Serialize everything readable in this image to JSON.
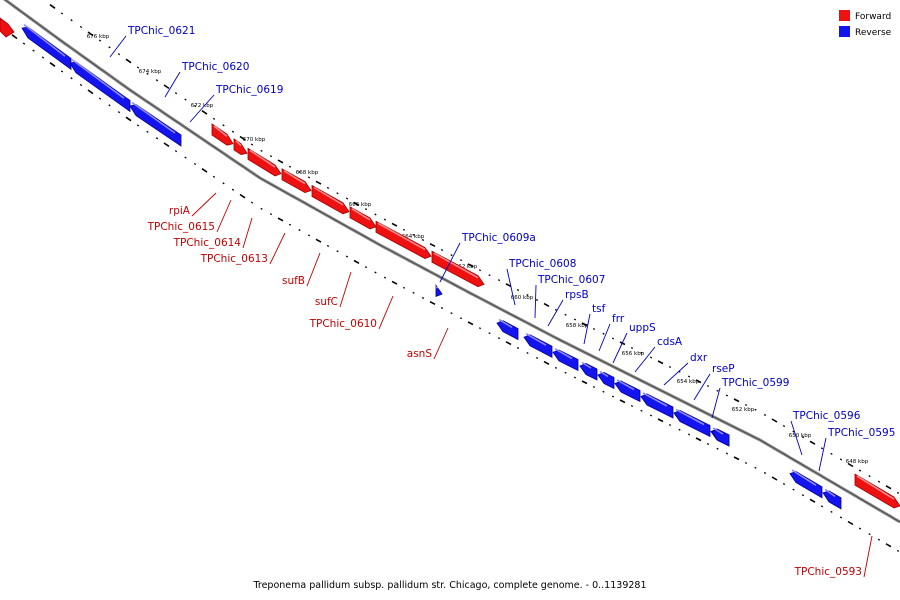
{
  "legend": [
    {
      "label": "Forward",
      "color": "#ee1111"
    },
    {
      "label": "Reverse",
      "color": "#1414ee"
    }
  ],
  "caption": "Treponema pallidum subsp. pallidum str. Chicago, complete genome. - 0..1139281",
  "colors": {
    "forward": "#ee1111",
    "forward_dark": "#a00000",
    "forward_light": "#ff8a8a",
    "reverse": "#1414ee",
    "reverse_dark": "#00009a",
    "reverse_light": "#8a8aff",
    "label_forward": "#c00000",
    "label_reverse": "#0000c0",
    "backbone": "#888888"
  },
  "kbp_ticks": [
    "676 kbp",
    "674 kbp",
    "672 kbp",
    "670 kbp",
    "668 kbp",
    "666 kbp",
    "664 kbp",
    "662 kbp",
    "660 kbp",
    "658 kbp",
    "656 kbp",
    "654 kbp",
    "652 kbp",
    "650 kbp",
    "648 kbp"
  ],
  "genes": [
    {
      "name": "TPChic_0621",
      "strand": "reverse"
    },
    {
      "name": "TPChic_0620",
      "strand": "reverse"
    },
    {
      "name": "TPChic_0619",
      "strand": "reverse"
    },
    {
      "name": "rpiA",
      "strand": "forward"
    },
    {
      "name": "TPChic_0615",
      "strand": "forward"
    },
    {
      "name": "TPChic_0614",
      "strand": "forward"
    },
    {
      "name": "TPChic_0613",
      "strand": "forward"
    },
    {
      "name": "sufB",
      "strand": "forward"
    },
    {
      "name": "sufC",
      "strand": "forward"
    },
    {
      "name": "TPChic_0610",
      "strand": "forward"
    },
    {
      "name": "asnS",
      "strand": "forward"
    },
    {
      "name": "TPChic_0609a",
      "strand": "reverse"
    },
    {
      "name": "TPChic_0608",
      "strand": "reverse"
    },
    {
      "name": "TPChic_0607",
      "strand": "reverse"
    },
    {
      "name": "rpsB",
      "strand": "reverse"
    },
    {
      "name": "tsf",
      "strand": "reverse"
    },
    {
      "name": "frr",
      "strand": "reverse"
    },
    {
      "name": "uppS",
      "strand": "reverse"
    },
    {
      "name": "cdsA",
      "strand": "reverse"
    },
    {
      "name": "dxr",
      "strand": "reverse"
    },
    {
      "name": "rseP",
      "strand": "reverse"
    },
    {
      "name": "TPChic_0599",
      "strand": "reverse"
    },
    {
      "name": "TPChic_0596",
      "strand": "reverse"
    },
    {
      "name": "TPChic_0595",
      "strand": "reverse"
    },
    {
      "name": "TPChic_0593",
      "strand": "forward"
    }
  ]
}
